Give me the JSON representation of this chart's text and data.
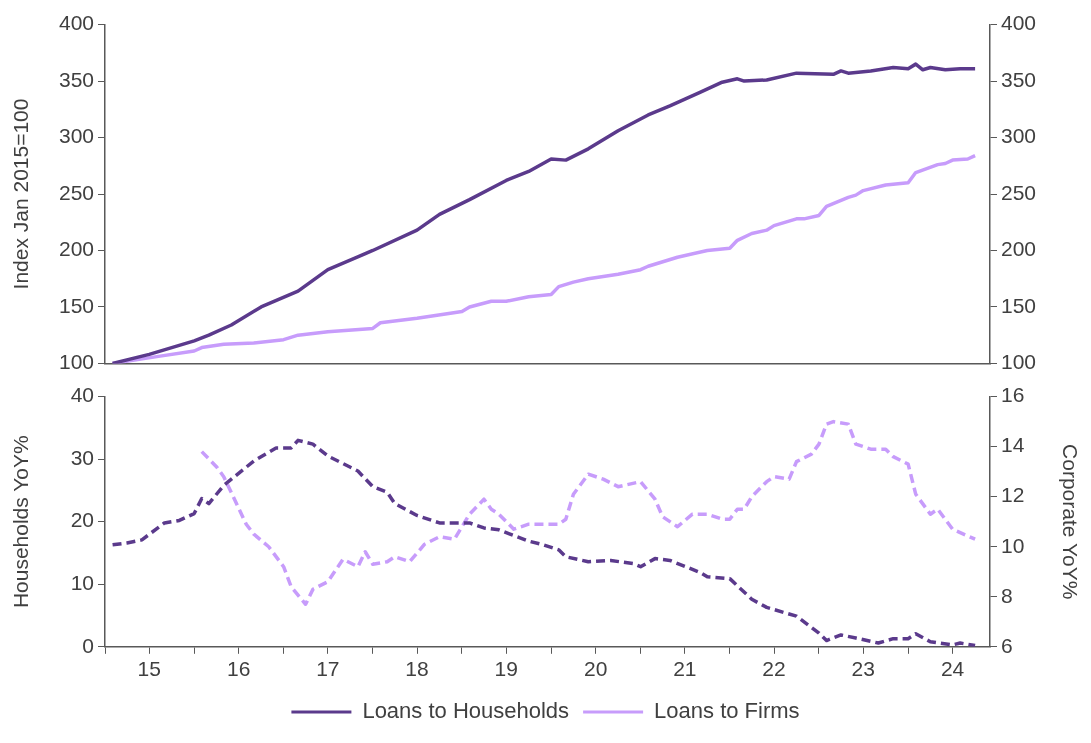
{
  "chart_data": [
    {
      "type": "line",
      "ylabel": "Index Jan 2015=100",
      "xlim": [
        "2015-01",
        "2024-12"
      ],
      "ylim": [
        100,
        400
      ],
      "yticks": [
        100,
        150,
        200,
        250,
        300,
        350,
        400
      ],
      "y2lim": [
        100,
        400
      ],
      "y2ticks": [
        100,
        150,
        200,
        250,
        300,
        350,
        400
      ],
      "tick_labels": "y",
      "series": [
        {
          "color": "#5b3a8c",
          "x": [
            "2015-02",
            "2015-07",
            "2016-01",
            "2016-03",
            "2016-06",
            "2016-10",
            "2017-03",
            "2017-07",
            "2018-01",
            "2018-07",
            "2018-10",
            "2019-02",
            "2019-07",
            "2019-10",
            "2020-01",
            "2020-03",
            "2020-06",
            "2020-10",
            "2021-02",
            "2021-05",
            "2021-09",
            "2021-12",
            "2022-02",
            "2022-03",
            "2022-06",
            "2022-10",
            "2023-03",
            "2023-04",
            "2023-05",
            "2023-08",
            "2023-11",
            "2024-01",
            "2024-02",
            "2024-03",
            "2024-04",
            "2024-06",
            "2024-08",
            "2024-10"
          ],
          "values": [
            100,
            108,
            120,
            125,
            134,
            150,
            164,
            183,
            200,
            218,
            232,
            245,
            262,
            270,
            281,
            280,
            290,
            306,
            320,
            328,
            340,
            349,
            352,
            350,
            351,
            357,
            356,
            359,
            357,
            359,
            362,
            361,
            365,
            360,
            362,
            360,
            361,
            361
          ]
        },
        {
          "color": "#c79cfb",
          "x": [
            "2015-02",
            "2015-08",
            "2016-01",
            "2016-02",
            "2016-05",
            "2016-09",
            "2017-01",
            "2017-03",
            "2017-07",
            "2018-01",
            "2018-02",
            "2018-07",
            "2018-11",
            "2019-01",
            "2019-02",
            "2019-05",
            "2019-07",
            "2019-10",
            "2020-01",
            "2020-02",
            "2020-04",
            "2020-06",
            "2020-10",
            "2021-01",
            "2021-02",
            "2021-06",
            "2021-10",
            "2022-01",
            "2022-02",
            "2022-04",
            "2022-06",
            "2022-07",
            "2022-10",
            "2022-11",
            "2023-01",
            "2023-02",
            "2023-05",
            "2023-06",
            "2023-07",
            "2023-10",
            "2024-01",
            "2024-02",
            "2024-05",
            "2024-06",
            "2024-07",
            "2024-09",
            "2024-10"
          ],
          "values": [
            100,
            106,
            111,
            114,
            117,
            118,
            121,
            125,
            128,
            131,
            136,
            140,
            144,
            146,
            150,
            155,
            155,
            159,
            161,
            168,
            172,
            175,
            179,
            183,
            186,
            194,
            200,
            202,
            209,
            215,
            218,
            222,
            228,
            228,
            231,
            239,
            247,
            249,
            253,
            258,
            260,
            269,
            276,
            277,
            280,
            281,
            284
          ]
        }
      ]
    },
    {
      "type": "line",
      "ylabel": "Households YoY%",
      "y2label": "Corporate YoY%",
      "xlim": [
        "2015-01",
        "2024-12"
      ],
      "xticks": [
        {
          "value": "2015-01",
          "label": null
        },
        {
          "value": "2015-07",
          "label": "15"
        },
        {
          "value": "2016-01",
          "label": null
        },
        {
          "value": "2016-07",
          "label": "16"
        },
        {
          "value": "2017-01",
          "label": null
        },
        {
          "value": "2017-07",
          "label": "17"
        },
        {
          "value": "2018-01",
          "label": null
        },
        {
          "value": "2018-07",
          "label": "18"
        },
        {
          "value": "2019-01",
          "label": null
        },
        {
          "value": "2019-07",
          "label": "19"
        },
        {
          "value": "2020-01",
          "label": null
        },
        {
          "value": "2020-07",
          "label": "20"
        },
        {
          "value": "2021-01",
          "label": null
        },
        {
          "value": "2021-07",
          "label": "21"
        },
        {
          "value": "2022-01",
          "label": null
        },
        {
          "value": "2022-07",
          "label": "22"
        },
        {
          "value": "2023-01",
          "label": null
        },
        {
          "value": "2023-07",
          "label": "23"
        },
        {
          "value": "2024-01",
          "label": null
        },
        {
          "value": "2024-07",
          "label": "24"
        }
      ],
      "ylim": [
        0,
        40
      ],
      "yticks": [
        0,
        10,
        20,
        30,
        40
      ],
      "y2lim": [
        6,
        16
      ],
      "y2ticks": [
        6,
        8,
        10,
        12,
        14,
        16
      ],
      "line_style": "dashed",
      "legend": "bottom",
      "series": [
        {
          "name": "Loans to Households",
          "color": "#5b3a8c",
          "x": [
            "2015-02",
            "2015-04",
            "2015-06",
            "2015-09",
            "2015-11",
            "2016-01",
            "2016-02",
            "2016-03",
            "2016-05",
            "2016-09",
            "2016-12",
            "2017-02",
            "2017-03",
            "2017-05",
            "2017-07",
            "2017-11",
            "2018-01",
            "2018-03",
            "2018-04",
            "2018-07",
            "2018-10",
            "2018-12",
            "2019-02",
            "2019-04",
            "2019-06",
            "2019-10",
            "2019-12",
            "2020-02",
            "2020-03",
            "2020-06",
            "2020-09",
            "2020-12",
            "2021-01",
            "2021-03",
            "2021-05",
            "2021-09",
            "2021-10",
            "2022-01",
            "2022-04",
            "2022-06",
            "2022-10",
            "2023-01",
            "2023-02",
            "2023-04",
            "2023-06",
            "2023-09",
            "2023-11",
            "2024-01",
            "2024-02",
            "2024-04",
            "2024-07",
            "2024-08",
            "2024-10"
          ],
          "values": [
            16.3,
            16.6,
            17.1,
            19.8,
            20.2,
            21.3,
            23.7,
            22.9,
            25.8,
            29.7,
            31.8,
            31.8,
            33.0,
            32.4,
            30.5,
            28.1,
            25.6,
            24.7,
            22.9,
            21.0,
            19.8,
            19.8,
            19.8,
            19.0,
            18.7,
            16.9,
            16.3,
            15.5,
            14.4,
            13.6,
            13.8,
            13.3,
            12.8,
            14.1,
            13.8,
            11.9,
            11.2,
            10.9,
            7.6,
            6.3,
            4.9,
            2.2,
            1.0,
            1.9,
            1.4,
            0.6,
            1.3,
            1.3,
            2.1,
            0.8,
            0.3,
            0.6,
            0.2
          ]
        },
        {
          "name": "Loans to Firms",
          "color": "#c79cfb",
          "axis": "y2",
          "x": [
            "2016-02",
            "2016-04",
            "2016-05",
            "2016-08",
            "2016-09",
            "2016-11",
            "2017-01",
            "2017-02",
            "2017-04",
            "2017-05",
            "2017-07",
            "2017-09",
            "2017-11",
            "2017-12",
            "2018-01",
            "2018-03",
            "2018-04",
            "2018-06",
            "2018-08",
            "2018-10",
            "2018-12",
            "2019-02",
            "2019-04",
            "2019-05",
            "2019-06",
            "2019-08",
            "2019-10",
            "2020-02",
            "2020-03",
            "2020-04",
            "2020-06",
            "2020-08",
            "2020-10",
            "2021-01",
            "2021-03",
            "2021-04",
            "2021-06",
            "2021-08",
            "2021-10",
            "2021-12",
            "2022-01",
            "2022-02",
            "2022-03",
            "2022-04",
            "2022-06",
            "2022-07",
            "2022-09",
            "2022-10",
            "2022-12",
            "2023-01",
            "2023-02",
            "2023-03",
            "2023-05",
            "2023-06",
            "2023-08",
            "2023-10",
            "2023-11",
            "2024-01",
            "2024-02",
            "2024-04",
            "2024-05",
            "2024-07",
            "2024-10"
          ],
          "values": [
            13.8,
            13.2,
            12.8,
            10.9,
            10.5,
            10.0,
            9.2,
            8.4,
            7.7,
            8.3,
            8.6,
            9.5,
            9.2,
            9.8,
            9.3,
            9.4,
            9.6,
            9.4,
            10.1,
            10.4,
            10.3,
            11.3,
            11.9,
            11.5,
            11.3,
            10.7,
            10.9,
            10.9,
            11.1,
            12.1,
            12.9,
            12.7,
            12.4,
            12.6,
            11.9,
            11.2,
            10.8,
            11.3,
            11.3,
            11.1,
            11.1,
            11.5,
            11.5,
            12.0,
            12.6,
            12.8,
            12.7,
            13.4,
            13.7,
            14.1,
            14.9,
            15.0,
            14.9,
            14.1,
            13.9,
            13.9,
            13.6,
            13.3,
            12.1,
            11.3,
            11.5,
            10.7,
            10.3
          ]
        }
      ]
    }
  ]
}
